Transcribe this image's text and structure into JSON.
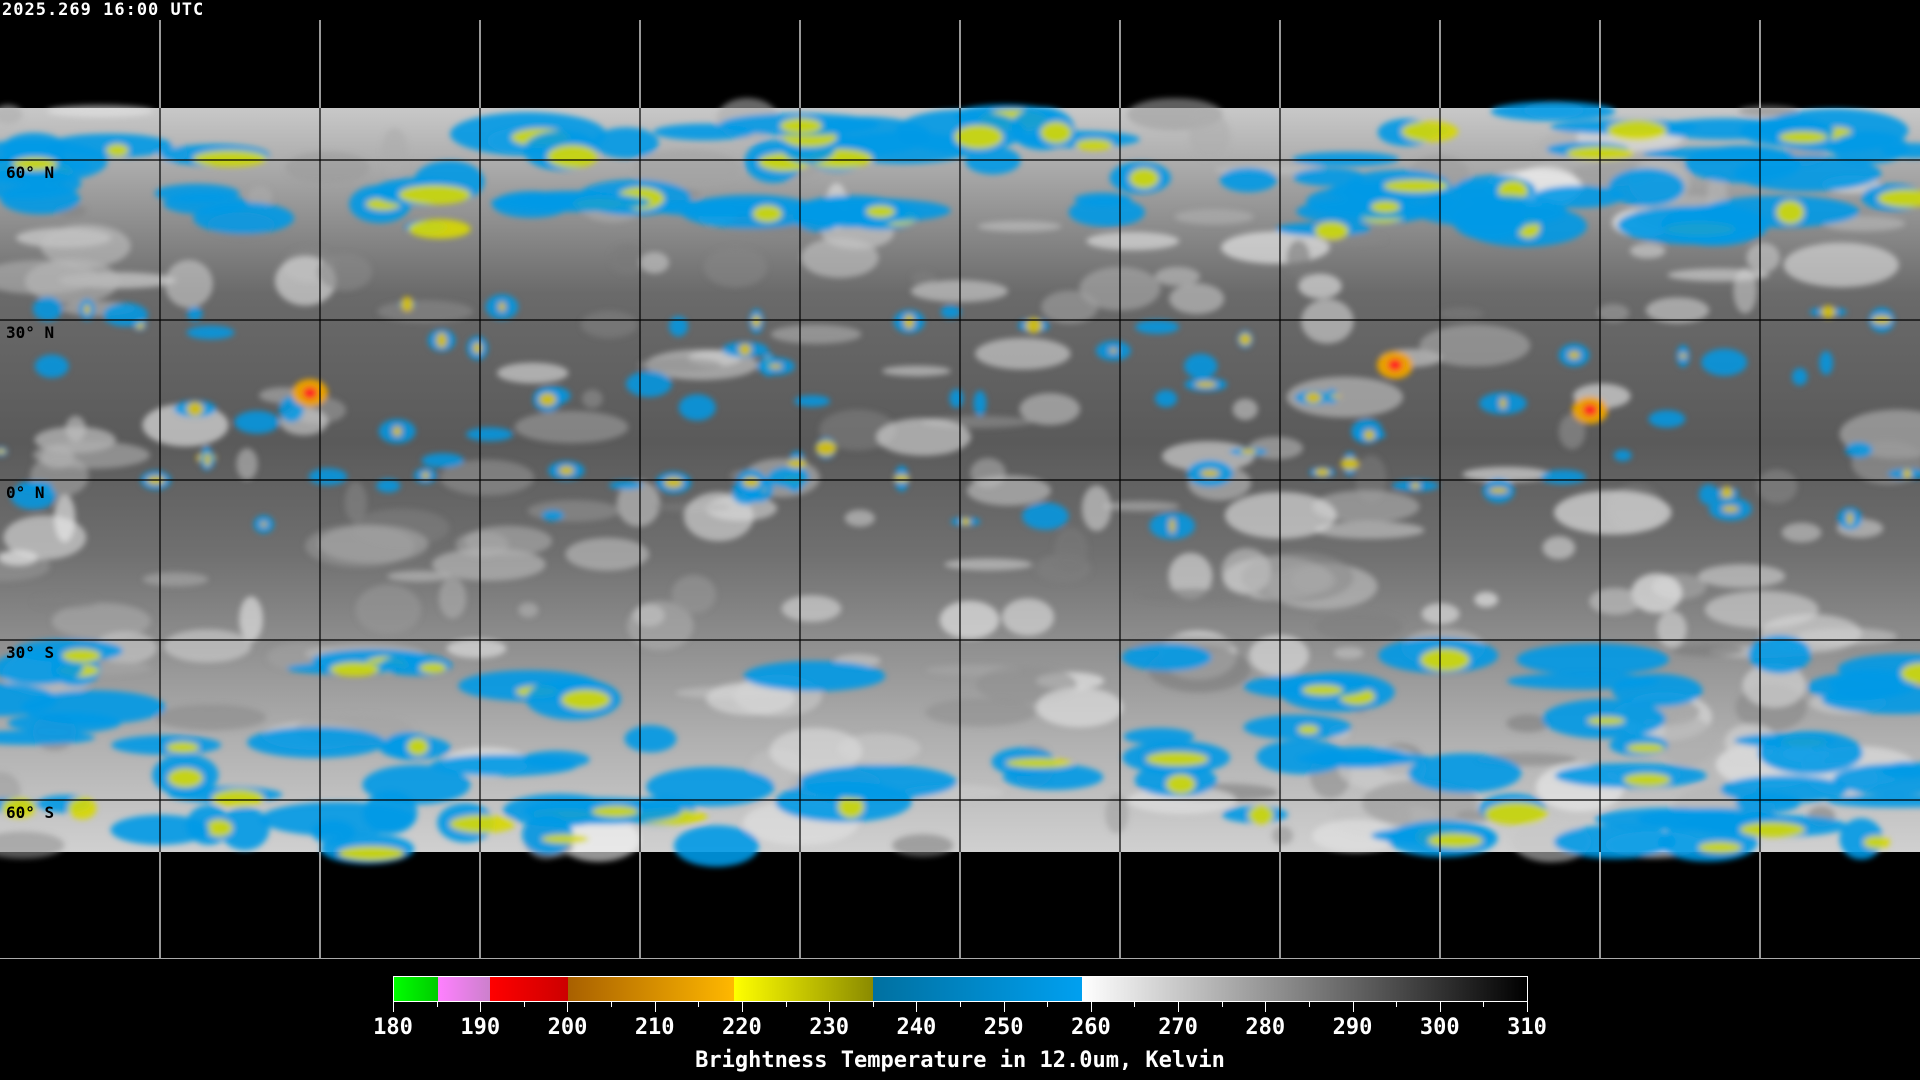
{
  "timestamp": "2025.269 16:00 UTC",
  "latitude_labels": [
    "60° N",
    "30° N",
    "0° N",
    "30° S",
    "60° S"
  ],
  "colorbar": {
    "title": "Brightness Temperature in 12.0um, Kelvin",
    "unit": "Kelvin",
    "range": [
      180,
      310
    ],
    "tick_labels": [
      "180",
      "190",
      "200",
      "210",
      "220",
      "230",
      "240",
      "250",
      "260",
      "270",
      "280",
      "290",
      "300",
      "310"
    ],
    "segments": [
      {
        "from": 180,
        "to": 185,
        "colors": [
          "#00ff00",
          "#00cc00"
        ]
      },
      {
        "from": 185,
        "to": 191,
        "colors": [
          "#ff80ff",
          "#cc80cc"
        ]
      },
      {
        "from": 191,
        "to": 200,
        "colors": [
          "#ff0000",
          "#cc0000"
        ]
      },
      {
        "from": 200,
        "to": 219,
        "colors": [
          "#a86000",
          "#ffb800"
        ]
      },
      {
        "from": 219,
        "to": 235,
        "colors": [
          "#ffff00",
          "#8a8a00"
        ]
      },
      {
        "from": 235,
        "to": 259,
        "colors": [
          "#0070a0",
          "#00a0f0"
        ]
      },
      {
        "from": 259,
        "to": 310,
        "colors": [
          "#ffffff",
          "#000000"
        ]
      }
    ]
  },
  "map": {
    "projection": "equirectangular",
    "grid_spacing_degrees": 30,
    "coastline_color": "#000000",
    "outside_coastline_color": "#ffffff"
  }
}
